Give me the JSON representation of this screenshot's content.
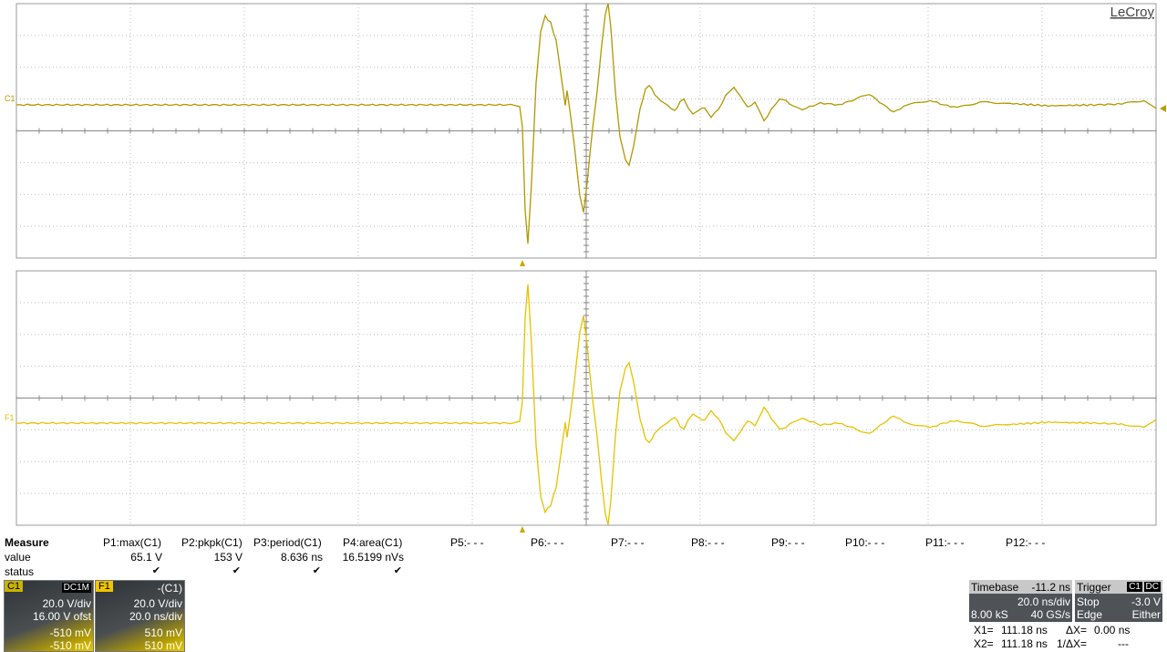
{
  "brand": "LeCroy",
  "traces": {
    "c1": "C1",
    "f1": "F1"
  },
  "measure": {
    "header": "Measure",
    "row_labels": [
      "value",
      "status"
    ],
    "params": [
      "P1:max(C1)",
      "P2:pkpk(C1)",
      "P3:period(C1)",
      "P4:area(C1)",
      "P5:- - -",
      "P6:- - -",
      "P7:- - -",
      "P8:- - -",
      "P9:- - -",
      "P10:- - -",
      "P11:- - -",
      "P12:- - -"
    ],
    "values": [
      "65.1 V",
      "153 V",
      "8.636 ns",
      "16.5199 nVs"
    ]
  },
  "channels": [
    {
      "name": "C1",
      "coupling": "DC1M",
      "lines": [
        "20.0 V/div",
        "16.00 V ofst"
      ],
      "cursors": [
        "-510 mV",
        "-510 mV"
      ]
    },
    {
      "name": "F1",
      "coupling": "-(C1)",
      "lines": [
        "20.0 V/div",
        "20.0 ns/div"
      ],
      "cursors": [
        "510 mV",
        "510 mV"
      ]
    }
  ],
  "timebase": {
    "label": "Timebase",
    "delay": "-11.2 ns",
    "scale": "20.0 ns/div",
    "samples": "8.00 kS",
    "rate": "40 GS/s"
  },
  "trigger": {
    "label": "Trigger",
    "source": "C1",
    "coupling": "DC",
    "mode": "Stop",
    "level": "-3.0 V",
    "type": "Edge",
    "slope": "Either"
  },
  "cursors": {
    "x1_label": "X1=",
    "x1": "111.18 ns",
    "dx_label": "ΔX=",
    "dx": "0.00 ns",
    "x2_label": "X2=",
    "x2": "111.18 ns",
    "inv_label": "1/ΔX=",
    "inv": "---"
  }
}
